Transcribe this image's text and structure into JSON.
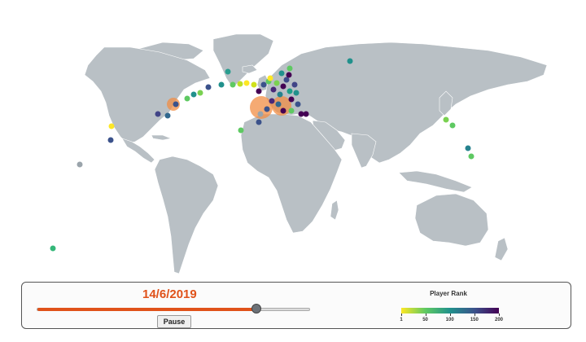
{
  "map": {
    "land_color": "#b9c0c5",
    "highlight_color": "#f28e44"
  },
  "control_panel": {
    "date": "14/6/2019",
    "slider_progress": 0.8,
    "pause_label": "Pause"
  },
  "legend": {
    "title": "Player Rank",
    "min": 1,
    "max": 200,
    "ticks": [
      "1",
      "50",
      "100",
      "150",
      "200"
    ],
    "tick_values": [
      1,
      50,
      100,
      150,
      200
    ],
    "gradient": [
      "#fde725",
      "#5ec962",
      "#21918c",
      "#3b528b",
      "#440154"
    ],
    "accent_color": "#e0521a"
  }
}
